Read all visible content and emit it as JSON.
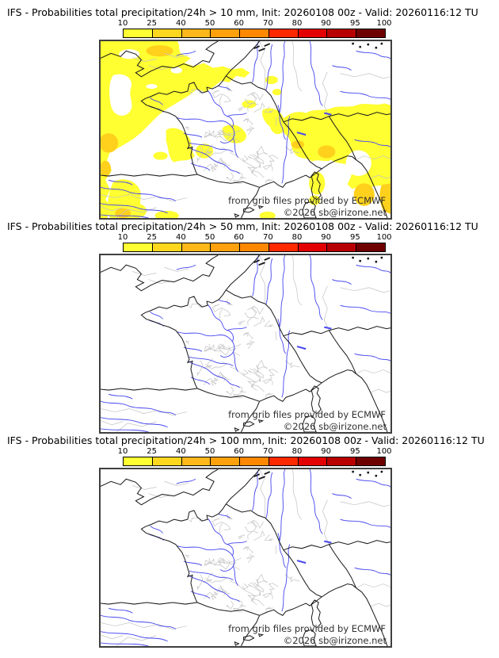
{
  "panels": [
    {
      "title": "IFS - Probabilities total precipitation/24h > 10 mm, Init: 20260108 00z - Valid: 20260116:12 TU",
      "has_probability_shading": true
    },
    {
      "title": "IFS - Probabilities total precipitation/24h > 50 mm, Init: 20260108 00z - Valid: 20260116:12 TU",
      "has_probability_shading": false
    },
    {
      "title": "IFS - Probabilities total precipitation/24h > 100 mm, Init: 20260108 00z - Valid: 20260116:12 TU",
      "has_probability_shading": false
    }
  ],
  "colorbar": {
    "tick_labels": [
      "10",
      "25",
      "40",
      "50",
      "60",
      "70",
      "80",
      "90",
      "95",
      "100"
    ],
    "segment_colors": [
      "#ffff33",
      "#ffd71f",
      "#ffb81a",
      "#ffa10d",
      "#ff8800",
      "#ff2900",
      "#e30000",
      "#b80000",
      "#6f0000"
    ]
  },
  "map": {
    "attribution_line1": "from grib files provided by ECMWF",
    "attribution_line2": "©2026 sb@irizone.net",
    "colors": {
      "coastline": "#1a1a1a",
      "rivers": "#4747f0",
      "admin_boundaries": "#c3c3c3",
      "probability_low": "#ffff32",
      "probability_mid": "#ffd11c",
      "background": "#ffffff"
    }
  }
}
